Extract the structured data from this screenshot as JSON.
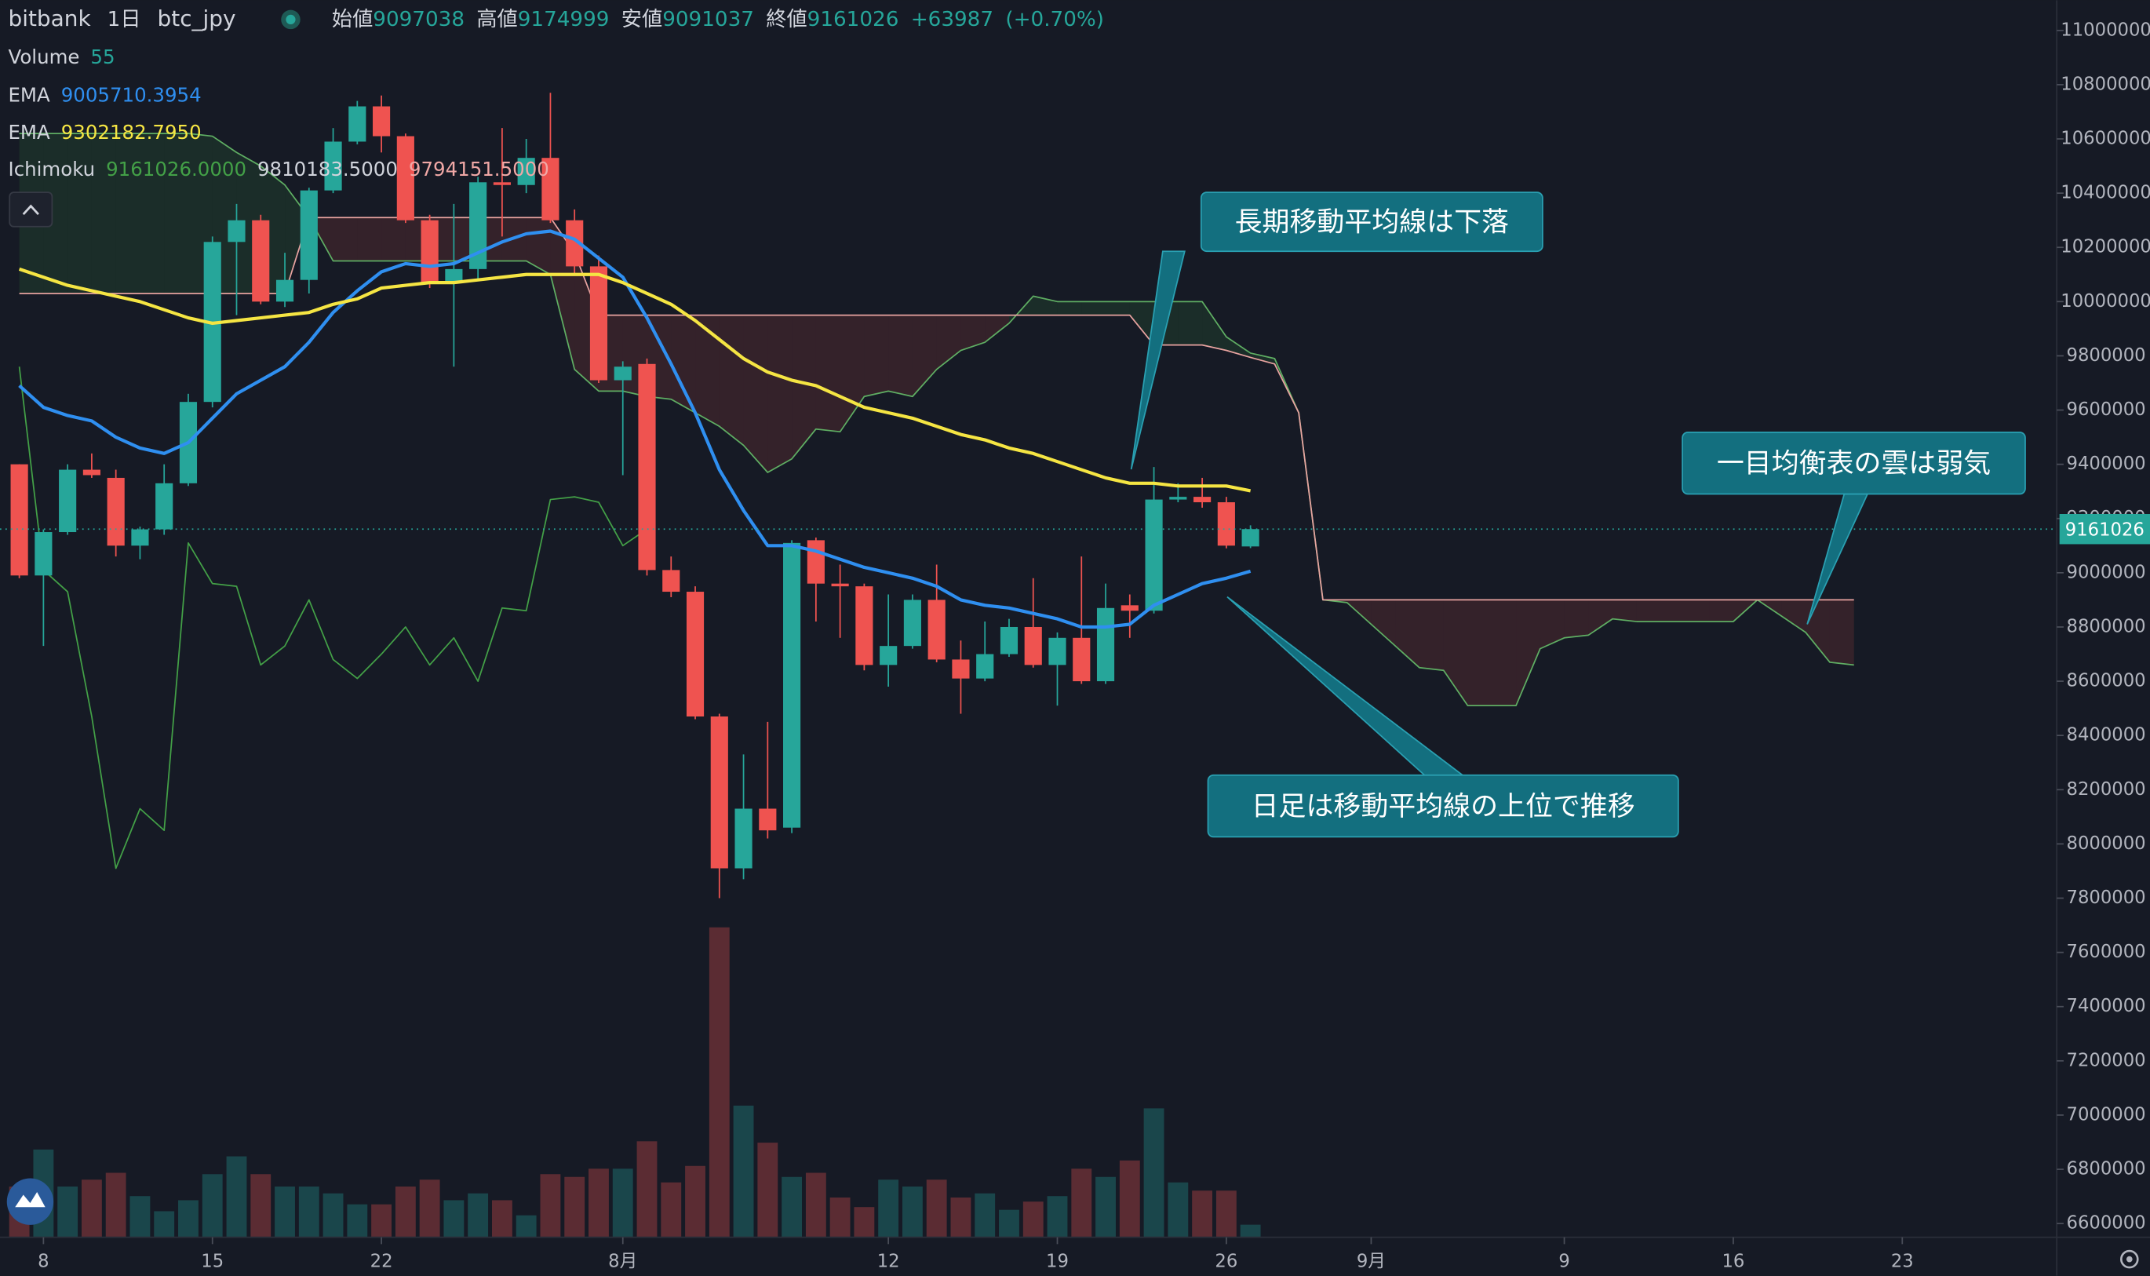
{
  "chart_data": {
    "type": "candlestick",
    "header": {
      "exchange": "bitbank",
      "interval": "1日",
      "pair": "btc_jpy",
      "ohlc_labels": [
        "始値",
        "高値",
        "安値",
        "終値"
      ],
      "change": "+63987",
      "change_pct": "(+0.70%)"
    },
    "volume_name": "Volume",
    "colors": {
      "up": "#26a69a",
      "down": "#ef5350",
      "background": "#161a25"
    },
    "x": [
      0,
      1,
      2,
      3,
      4,
      5,
      6,
      7,
      8,
      9,
      10,
      11,
      12,
      13,
      14,
      15,
      16,
      17,
      18,
      19,
      20,
      21,
      22,
      23,
      24,
      25,
      26,
      27,
      28,
      29,
      30,
      31,
      32,
      33,
      34,
      35,
      36,
      37,
      38,
      39,
      40,
      41,
      42,
      43,
      44,
      45,
      46,
      47,
      48,
      49,
      50,
      51
    ],
    "open": [
      9400000,
      8990000,
      9150000,
      9380000,
      9350000,
      9100000,
      9160000,
      9330000,
      9630000,
      10220000,
      10300000,
      10000000,
      10080000,
      10410000,
      10590000,
      10720000,
      10610000,
      10300000,
      10070000,
      10120000,
      10440000,
      10430000,
      10530000,
      10300000,
      10130000,
      9710000,
      9770000,
      9010000,
      8930000,
      8470000,
      7910000,
      8130000,
      8060000,
      9120000,
      8960000,
      8950000,
      8660000,
      8730000,
      8900000,
      8680000,
      8610000,
      8700000,
      8800000,
      8660000,
      8760000,
      8600000,
      8880000,
      8860000,
      9270000,
      9280000,
      9260000,
      9097038
    ],
    "high": [
      9400000,
      9160000,
      9400000,
      9440000,
      9380000,
      9170000,
      9400000,
      9660000,
      10240000,
      10360000,
      10320000,
      10180000,
      10420000,
      10640000,
      10740000,
      10760000,
      10620000,
      10320000,
      10360000,
      10460000,
      10640000,
      10600000,
      10770000,
      10340000,
      10170000,
      9780000,
      9790000,
      9060000,
      8950000,
      8480000,
      8330000,
      8450000,
      9120000,
      9130000,
      9030000,
      8960000,
      8920000,
      8920000,
      9030000,
      8750000,
      8820000,
      8830000,
      8980000,
      8780000,
      9060000,
      8960000,
      8920000,
      9390000,
      9330000,
      9350000,
      9280000,
      9174999
    ],
    "low": [
      8980000,
      8730000,
      9140000,
      9350000,
      9060000,
      9050000,
      9140000,
      9320000,
      9610000,
      9950000,
      9990000,
      9980000,
      10030000,
      10400000,
      10580000,
      10550000,
      10290000,
      10050000,
      9760000,
      10080000,
      10240000,
      10400000,
      10290000,
      10100000,
      9700000,
      9360000,
      8990000,
      8910000,
      8460000,
      7800000,
      7870000,
      8020000,
      8040000,
      8820000,
      8760000,
      8640000,
      8580000,
      8720000,
      8670000,
      8480000,
      8600000,
      8690000,
      8650000,
      8510000,
      8590000,
      8590000,
      8760000,
      8850000,
      9260000,
      9240000,
      9090000,
      9091037
    ],
    "close": [
      8990000,
      9150000,
      9380000,
      9360000,
      9100000,
      9160000,
      9330000,
      9630000,
      10220000,
      10300000,
      10000000,
      10080000,
      10410000,
      10590000,
      10720000,
      10610000,
      10300000,
      10070000,
      10120000,
      10440000,
      10430000,
      10530000,
      10300000,
      10130000,
      9710000,
      9760000,
      9010000,
      8930000,
      8470000,
      7910000,
      8130000,
      8050000,
      9110000,
      8960000,
      8950000,
      8660000,
      8730000,
      8900000,
      8680000,
      8610000,
      8700000,
      8800000,
      8660000,
      8760000,
      8600000,
      8870000,
      8860000,
      9270000,
      9280000,
      9260000,
      9100000,
      9161026
    ],
    "volume": [
      222,
      384,
      222,
      252,
      282,
      180,
      114,
      162,
      276,
      354,
      276,
      222,
      222,
      192,
      144,
      144,
      222,
      252,
      162,
      192,
      162,
      96,
      276,
      264,
      300,
      300,
      420,
      240,
      312,
      1356,
      576,
      414,
      264,
      282,
      174,
      132,
      252,
      222,
      252,
      174,
      192,
      120,
      156,
      180,
      300,
      264,
      336,
      564,
      240,
      204,
      204,
      55
    ],
    "series": [
      {
        "name": "EMA",
        "color": "#2f8ff0",
        "values": [
          9690000,
          9610000,
          9580000,
          9560000,
          9500000,
          9460000,
          9440000,
          9480000,
          9570000,
          9660000,
          9710000,
          9760000,
          9850000,
          9960000,
          10040000,
          10110000,
          10140000,
          10130000,
          10140000,
          10180000,
          10220000,
          10250000,
          10260000,
          10230000,
          10160000,
          10090000,
          9940000,
          9770000,
          9590000,
          9380000,
          9230000,
          9100000,
          9100000,
          9080000,
          9050000,
          9020000,
          9000000,
          8980000,
          8950000,
          8900000,
          8880000,
          8870000,
          8850000,
          8830000,
          8800000,
          8800000,
          8810000,
          8880000,
          8920000,
          8960000,
          8980000,
          9005710.3954
        ]
      },
      {
        "name": "EMA",
        "color": "#f5e543",
        "last_label": "9302182.7950",
        "values": [
          10120000,
          10090000,
          10060000,
          10040000,
          10020000,
          10000000,
          9970000,
          9940000,
          9920000,
          9930000,
          9940000,
          9950000,
          9960000,
          9990000,
          10010000,
          10050000,
          10060000,
          10070000,
          10070000,
          10080000,
          10090000,
          10100000,
          10100000,
          10100000,
          10100000,
          10070000,
          10030000,
          9990000,
          9930000,
          9860000,
          9790000,
          9740000,
          9710000,
          9690000,
          9650000,
          9610000,
          9590000,
          9570000,
          9540000,
          9510000,
          9490000,
          9460000,
          9440000,
          9410000,
          9380000,
          9350000,
          9330000,
          9330000,
          9320000,
          9320000,
          9320000,
          9302182.795
        ]
      }
    ],
    "ichimoku": {
      "name": "Ichimoku",
      "labels": [
        "9161026.0000",
        "9810183.5000",
        "9794151.5000"
      ],
      "span_a_color": "#5fae63",
      "span_b_color": "#e8a3a0",
      "x": [
        0,
        1,
        2,
        3,
        4,
        5,
        6,
        7,
        8,
        9,
        10,
        11,
        12,
        13,
        14,
        15,
        16,
        17,
        18,
        19,
        20,
        21,
        22,
        23,
        24,
        25,
        26,
        27,
        28,
        29,
        30,
        31,
        32,
        33,
        34,
        35,
        36,
        37,
        38,
        39,
        40,
        41,
        42,
        43,
        44,
        45,
        46,
        47,
        48,
        49,
        50,
        51,
        52,
        53,
        54,
        55,
        56,
        57,
        58,
        59,
        60,
        61,
        62,
        63,
        64,
        65,
        66,
        67,
        68,
        69,
        70,
        71,
        72,
        73,
        74,
        75,
        76
      ],
      "span_a": [
        10620000,
        10620000,
        10620000,
        10620000,
        10620000,
        10620000,
        10620000,
        10620000,
        10610000,
        10550000,
        10500000,
        10430000,
        10310000,
        10150000,
        10150000,
        10150000,
        10150000,
        10150000,
        10150000,
        10150000,
        10150000,
        10150000,
        10100000,
        9750000,
        9670000,
        9670000,
        9650000,
        9640000,
        9590000,
        9540000,
        9470000,
        9370000,
        9420000,
        9530000,
        9520000,
        9650000,
        9670000,
        9650000,
        9750000,
        9820000,
        9850000,
        9920000,
        10020000,
        10000000,
        10000000,
        10000000,
        10000000,
        10000000,
        10000000,
        10000000,
        9870000,
        9810183.5,
        9790000,
        9590000,
        8900000,
        8890000,
        8810000,
        8730000,
        8650000,
        8640000,
        8510000,
        8510000,
        8510000,
        8720000,
        8760000,
        8770000,
        8830000,
        8820000,
        8820000,
        8820000,
        8820000,
        8820000,
        8900000,
        8840000,
        8780000,
        8670000,
        8660000
      ],
      "span_b": [
        10030000,
        10030000,
        10030000,
        10030000,
        10030000,
        10030000,
        10030000,
        10030000,
        10030000,
        10030000,
        10030000,
        10030000,
        10310000,
        10310000,
        10310000,
        10310000,
        10310000,
        10310000,
        10310000,
        10310000,
        10310000,
        10310000,
        10310000,
        10180000,
        9950000,
        9950000,
        9950000,
        9950000,
        9950000,
        9950000,
        9950000,
        9950000,
        9950000,
        9950000,
        9950000,
        9950000,
        9950000,
        9950000,
        9950000,
        9950000,
        9950000,
        9950000,
        9950000,
        9950000,
        9950000,
        9950000,
        9950000,
        9840000,
        9840000,
        9840000,
        9820000,
        9794151.5,
        9770000,
        9590000,
        8900000,
        8900000,
        8900000,
        8900000,
        8900000,
        8900000,
        8900000,
        8900000,
        8900000,
        8900000,
        8900000,
        8900000,
        8900000,
        8900000,
        8900000,
        8900000,
        8900000,
        8900000,
        8900000,
        8900000,
        8900000,
        8900000,
        8900000
      ],
      "lagging_color": "#43a047",
      "lagging_x": [
        0,
        1,
        2,
        3,
        4,
        5,
        6,
        7,
        8,
        9,
        10,
        11,
        12,
        13,
        14,
        15,
        16,
        17,
        18,
        19,
        20,
        21,
        22,
        23,
        24,
        25,
        26
      ],
      "lagging": [
        9760000,
        9010000,
        8930000,
        8470000,
        7910000,
        8130000,
        8050000,
        9110000,
        8960000,
        8950000,
        8660000,
        8730000,
        8900000,
        8680000,
        8610000,
        8700000,
        8800000,
        8660000,
        8760000,
        8600000,
        8870000,
        8860000,
        9270000,
        9280000,
        9260000,
        9100000,
        9161026
      ]
    },
    "xlim": [
      -0.8,
      84.4
    ],
    "xticks": [
      {
        "value": 1,
        "label": "8"
      },
      {
        "value": 8,
        "label": "15"
      },
      {
        "value": 15,
        "label": "22"
      },
      {
        "value": 25,
        "label": "8月"
      },
      {
        "value": 36,
        "label": "12"
      },
      {
        "value": 43,
        "label": "19"
      },
      {
        "value": 50,
        "label": "26"
      },
      {
        "value": 56,
        "label": "9月"
      },
      {
        "value": 64,
        "label": "9"
      },
      {
        "value": 71,
        "label": "16"
      },
      {
        "value": 78,
        "label": "23"
      }
    ],
    "ylim": [
      6549400,
      11111000
    ],
    "yticks": [
      11000000,
      10800000,
      10600000,
      10400000,
      10200000,
      10000000,
      9800000,
      9600000,
      9400000,
      9200000,
      9000000,
      8800000,
      8600000,
      8400000,
      8200000,
      8000000,
      7800000,
      7600000,
      7400000,
      7200000,
      7000000,
      6800000,
      6600000
    ],
    "grid": false,
    "annotations": [
      {
        "text": "長期移動平均線は下落"
      },
      {
        "text": "一目均衡表の雲は弱気"
      },
      {
        "text": "日足は移動平均線の上位で推移"
      }
    ]
  }
}
